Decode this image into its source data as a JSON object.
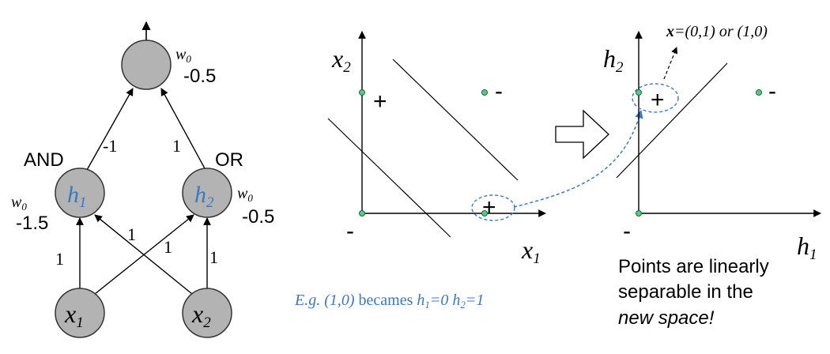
{
  "colors": {
    "node_fill": "#b3b3b3",
    "node_stroke": "#333333",
    "line": "#000000",
    "accent_blue": "#3a78c2",
    "dot_fill": "#5cc68a",
    "dot_stroke": "#1a6b3a"
  },
  "network": {
    "output_weight_label": "w",
    "output_weight_sub": "0",
    "output_bias": "-0.5",
    "left_gate": "AND",
    "right_gate": "OR",
    "h1_label": "h",
    "h1_sub": "1",
    "h2_label": "h",
    "h2_sub": "2",
    "h1_bias_w": "w",
    "h1_bias_sub": "0",
    "h1_bias": "-1.5",
    "h2_bias_w": "w",
    "h2_bias_sub": "0",
    "h2_bias": "-0.5",
    "w_h1_out": "-1",
    "w_h2_out": "1",
    "w_x1_h1": "1",
    "w_x2_h1": "1",
    "w_x1_h2": "1",
    "w_x2_h2": "1",
    "x1_label": "x",
    "x1_sub": "1",
    "x2_label": "x",
    "x2_sub": "2"
  },
  "input_space": {
    "y_axis": "x",
    "y_axis_sub": "2",
    "x_axis": "x",
    "x_axis_sub": "1",
    "plus_top": "+",
    "minus_top": "-",
    "minus_origin": "-",
    "plus_right": "+"
  },
  "hidden_space": {
    "y_axis": "h",
    "y_axis_sub": "2",
    "x_axis": "h",
    "x_axis_sub": "1",
    "plus": "+",
    "minus_right": "-",
    "minus_origin": "-",
    "annotation_bold": "x",
    "annotation_rest": "=(0,1) or (1,0)"
  },
  "caption": {
    "eg": "E.g. (1,0)",
    "becomes": " becames ",
    "h1": "h",
    "h1_sub": "1",
    "h1_val": "=0 ",
    "h2": "h",
    "h2_sub": "2",
    "h2_val": "=1"
  },
  "note": {
    "line1": "Points are linearly",
    "line2": "separable in the",
    "line3": "new space!"
  }
}
